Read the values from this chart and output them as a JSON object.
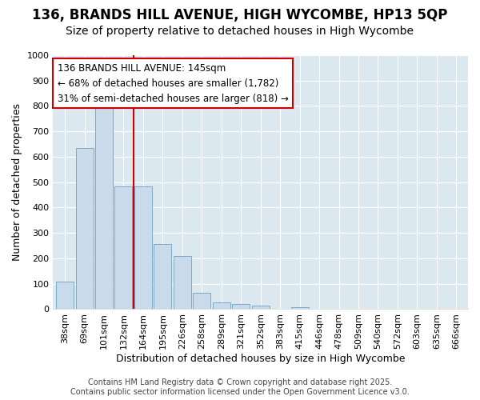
{
  "title": "136, BRANDS HILL AVENUE, HIGH WYCOMBE, HP13 5QP",
  "subtitle": "Size of property relative to detached houses in High Wycombe",
  "xlabel": "Distribution of detached houses by size in High Wycombe",
  "ylabel": "Number of detached properties",
  "categories": [
    "38sqm",
    "69sqm",
    "101sqm",
    "132sqm",
    "164sqm",
    "195sqm",
    "226sqm",
    "258sqm",
    "289sqm",
    "321sqm",
    "352sqm",
    "383sqm",
    "415sqm",
    "446sqm",
    "478sqm",
    "509sqm",
    "540sqm",
    "572sqm",
    "603sqm",
    "635sqm",
    "666sqm"
  ],
  "values": [
    110,
    635,
    810,
    483,
    483,
    258,
    210,
    65,
    27,
    20,
    14,
    0,
    8,
    0,
    0,
    0,
    0,
    0,
    0,
    0,
    0
  ],
  "bar_color": "#c9daea",
  "bar_edge_color": "#7aaac8",
  "vline_color": "#cc0000",
  "annotation_text": "136 BRANDS HILL AVENUE: 145sqm\n← 68% of detached houses are smaller (1,782)\n31% of semi-detached houses are larger (818) →",
  "annotation_box_facecolor": "#ffffff",
  "annotation_box_edgecolor": "#cc0000",
  "ylim": [
    0,
    1000
  ],
  "yticks": [
    0,
    100,
    200,
    300,
    400,
    500,
    600,
    700,
    800,
    900,
    1000
  ],
  "bg_color": "#dce8f0",
  "fig_bg_color": "#ffffff",
  "footer_text": "Contains HM Land Registry data © Crown copyright and database right 2025.\nContains public sector information licensed under the Open Government Licence v3.0.",
  "title_fontsize": 12,
  "subtitle_fontsize": 10,
  "xlabel_fontsize": 9,
  "ylabel_fontsize": 9,
  "annotation_fontsize": 8.5,
  "tick_fontsize": 8,
  "footer_fontsize": 7
}
